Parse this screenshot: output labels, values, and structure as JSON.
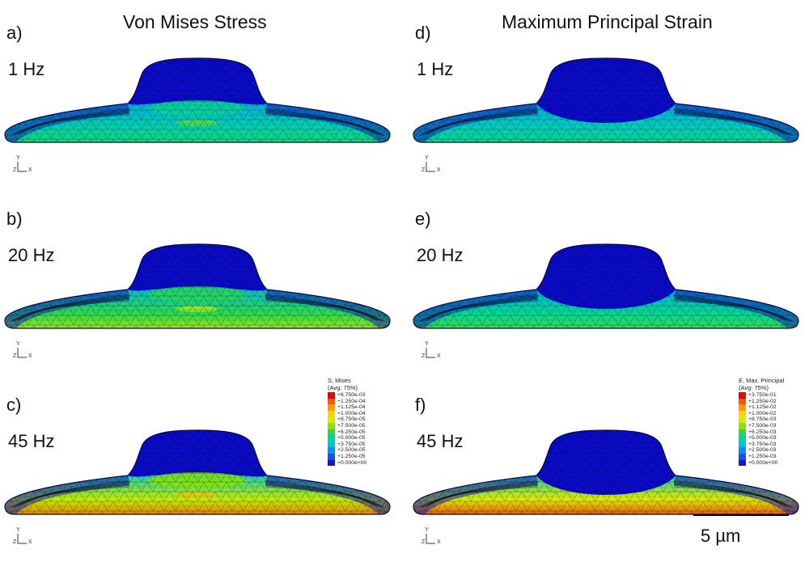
{
  "figure": {
    "columns": [
      {
        "title": "Von Mises Stress",
        "panels": [
          {
            "letter": "a)",
            "frequency": "1 Hz",
            "field": "mises",
            "level": 0.22
          },
          {
            "letter": "b)",
            "frequency": "20 Hz",
            "field": "mises",
            "level": 0.5
          },
          {
            "letter": "c)",
            "frequency": "45 Hz",
            "field": "mises",
            "level": 0.9
          }
        ],
        "legend": {
          "title": "S, Mises",
          "subtitle": "(Avg: 75%)",
          "values": [
            "+8.750e-03",
            "+1.250e-04",
            "+1.125e-04",
            "+1.000e-04",
            "+8.750e-05",
            "+7.500e-05",
            "+6.250e-05",
            "+5.000e-05",
            "+3.750e-05",
            "+2.500e-05",
            "+1.250e-05",
            "+0.000e+00"
          ]
        }
      },
      {
        "title": "Maximum Principal Strain",
        "panels": [
          {
            "letter": "d)",
            "frequency": "1 Hz",
            "field": "strain",
            "level": 0.18
          },
          {
            "letter": "e)",
            "frequency": "20 Hz",
            "field": "strain",
            "level": 0.3
          },
          {
            "letter": "f)",
            "frequency": "45 Hz",
            "field": "strain",
            "level": 1.0
          }
        ],
        "legend": {
          "title": "E, Max. Principal",
          "subtitle": "(Avg: 75%)",
          "values": [
            "+3.750e-01",
            "+1.250e-02",
            "+1.125e-02",
            "+1.000e-02",
            "+8.750e-03",
            "+7.500e-03",
            "+6.250e-03",
            "+5.000e-03",
            "+3.750e-03",
            "+2.500e-03",
            "+1.250e-03",
            "+0.000e+00"
          ]
        }
      }
    ],
    "legend_colors": [
      "#e8000b",
      "#ff5500",
      "#ff9a00",
      "#ffd400",
      "#d8ee00",
      "#8ae400",
      "#2fd84a",
      "#00d69a",
      "#00c2df",
      "#0093f0",
      "#1a4df0",
      "#1a14cf"
    ],
    "axis_triad": {
      "y": "Y",
      "x": "X",
      "z": "Z"
    },
    "scale_bar": {
      "label": "5 µm"
    }
  }
}
